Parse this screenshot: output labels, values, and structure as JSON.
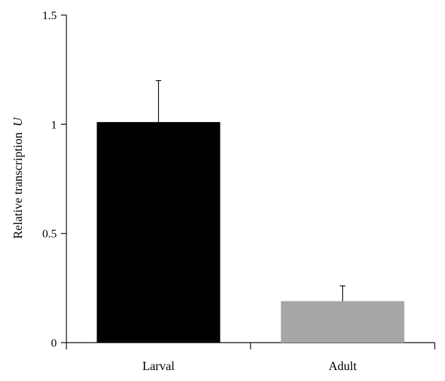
{
  "chart_data": {
    "type": "bar",
    "categories": [
      "Larval",
      "Adult"
    ],
    "values": [
      1.01,
      0.19
    ],
    "errors": [
      0.19,
      0.07
    ],
    "bar_colors": [
      "#000000",
      "#a6a6a6"
    ],
    "ylabel": "Relative transcription",
    "ylabel_unit": "U",
    "ylim": [
      0,
      1.5
    ],
    "yticks": [
      0,
      0.5,
      1,
      1.5
    ],
    "ytick_labels": [
      "0",
      "0.5",
      "1",
      "1.5"
    ],
    "grid": false,
    "legend": "none"
  }
}
